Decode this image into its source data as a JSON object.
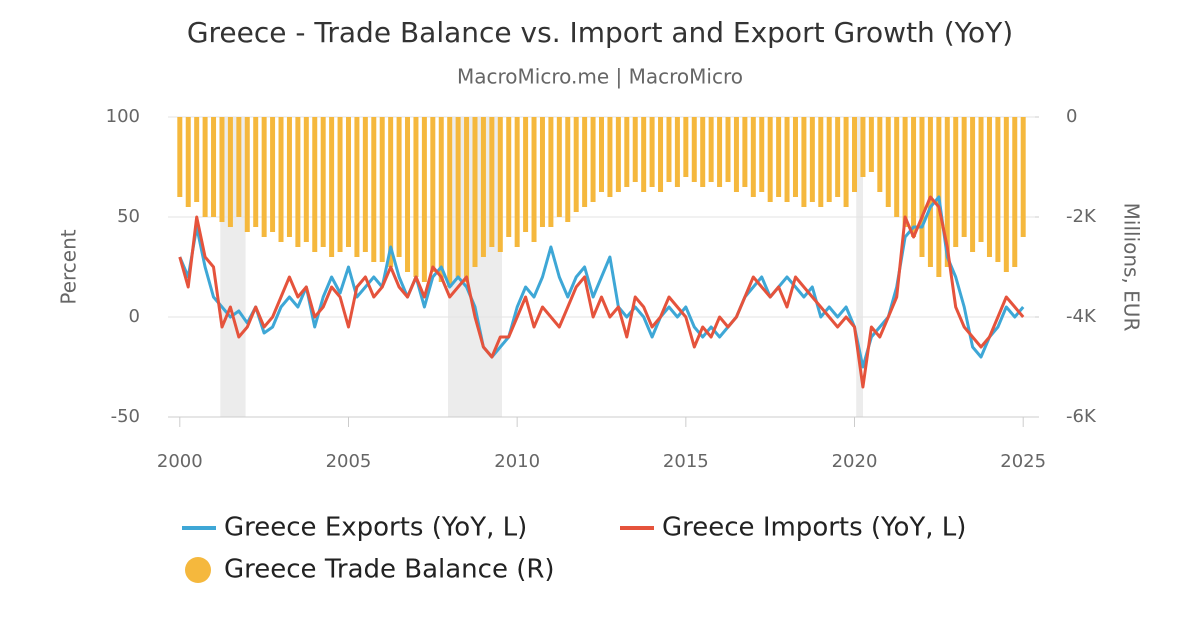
{
  "chart_data": {
    "type": "line_bar_dual",
    "title": "Greece - Trade Balance vs. Import and Export Growth (YoY)",
    "subtitle": "MacroMicro.me | MacroMicro",
    "y_label": "Percent",
    "y2_label": "Millions, EUR",
    "x": [
      2000,
      2000.25,
      2000.5,
      2000.75,
      2001,
      2001.25,
      2001.5,
      2001.75,
      2002,
      2002.25,
      2002.5,
      2002.75,
      2003,
      2003.25,
      2003.5,
      2003.75,
      2004,
      2004.25,
      2004.5,
      2004.75,
      2005,
      2005.25,
      2005.5,
      2005.75,
      2006,
      2006.25,
      2006.5,
      2006.75,
      2007,
      2007.25,
      2007.5,
      2007.75,
      2008,
      2008.25,
      2008.5,
      2008.75,
      2009,
      2009.25,
      2009.5,
      2009.75,
      2010,
      2010.25,
      2010.5,
      2010.75,
      2011,
      2011.25,
      2011.5,
      2011.75,
      2012,
      2012.25,
      2012.5,
      2012.75,
      2013,
      2013.25,
      2013.5,
      2013.75,
      2014,
      2014.25,
      2014.5,
      2014.75,
      2015,
      2015.25,
      2015.5,
      2015.75,
      2016,
      2016.25,
      2016.5,
      2016.75,
      2017,
      2017.25,
      2017.5,
      2017.75,
      2018,
      2018.25,
      2018.5,
      2018.75,
      2019,
      2019.25,
      2019.5,
      2019.75,
      2020,
      2020.25,
      2020.5,
      2020.75,
      2021,
      2021.25,
      2021.5,
      2021.75,
      2022,
      2022.25,
      2022.5,
      2022.75,
      2023,
      2023.25,
      2023.5,
      2023.75,
      2024,
      2024.25,
      2024.5,
      2024.75,
      2025
    ],
    "series": [
      {
        "name": "Greece Trade Balance (R)",
        "color": "#f5b83d",
        "kind": "bar",
        "axis": "y2",
        "values": [
          -1600,
          -1800,
          -1700,
          -2000,
          -2000,
          -2100,
          -2200,
          -2000,
          -2300,
          -2200,
          -2400,
          -2300,
          -2500,
          -2400,
          -2600,
          -2500,
          -2700,
          -2600,
          -2800,
          -2700,
          -2600,
          -2800,
          -2700,
          -2900,
          -2900,
          -3000,
          -2800,
          -3100,
          -3200,
          -3300,
          -3100,
          -3300,
          -3400,
          -3200,
          -3300,
          -3000,
          -2800,
          -2600,
          -2700,
          -2400,
          -2600,
          -2300,
          -2500,
          -2200,
          -2200,
          -2000,
          -2100,
          -1900,
          -1800,
          -1700,
          -1500,
          -1600,
          -1500,
          -1400,
          -1300,
          -1500,
          -1400,
          -1500,
          -1300,
          -1400,
          -1200,
          -1300,
          -1400,
          -1300,
          -1400,
          -1300,
          -1500,
          -1400,
          -1600,
          -1500,
          -1700,
          -1600,
          -1700,
          -1600,
          -1800,
          -1700,
          -1800,
          -1700,
          -1600,
          -1800,
          -1500,
          -1200,
          -1100,
          -1500,
          -1800,
          -2000,
          -2200,
          -2400,
          -2800,
          -3000,
          -3200,
          -3000,
          -2600,
          -2400,
          -2700,
          -2500,
          -2800,
          -2900,
          -3100,
          -3000,
          -2400
        ]
      },
      {
        "name": "Greece Exports (YoY, L)",
        "color": "#3ea7d6",
        "kind": "line",
        "values": [
          30,
          20,
          45,
          25,
          10,
          5,
          0,
          3,
          -3,
          5,
          -8,
          -5,
          5,
          10,
          5,
          15,
          -5,
          10,
          20,
          12,
          25,
          10,
          15,
          20,
          15,
          35,
          20,
          10,
          20,
          5,
          20,
          25,
          15,
          20,
          15,
          5,
          -15,
          -20,
          -15,
          -10,
          5,
          15,
          10,
          20,
          35,
          20,
          10,
          20,
          25,
          10,
          20,
          30,
          5,
          0,
          5,
          0,
          -10,
          0,
          5,
          0,
          5,
          -5,
          -10,
          -5,
          -10,
          -5,
          0,
          10,
          15,
          20,
          10,
          15,
          20,
          15,
          10,
          15,
          0,
          5,
          0,
          5,
          -5,
          -25,
          -10,
          -5,
          0,
          15,
          40,
          45,
          45,
          55,
          60,
          30,
          20,
          5,
          -15,
          -20,
          -10,
          -5,
          5,
          0,
          5
        ]
      },
      {
        "name": "Greece Imports (YoY, L)",
        "color": "#e5533c",
        "kind": "line",
        "values": [
          30,
          15,
          50,
          30,
          25,
          -5,
          5,
          -10,
          -5,
          5,
          -5,
          0,
          10,
          20,
          10,
          15,
          0,
          5,
          15,
          10,
          -5,
          15,
          20,
          10,
          15,
          25,
          15,
          10,
          20,
          10,
          25,
          20,
          10,
          15,
          20,
          0,
          -15,
          -20,
          -10,
          -10,
          0,
          10,
          -5,
          5,
          0,
          -5,
          5,
          15,
          20,
          0,
          10,
          0,
          5,
          -10,
          10,
          5,
          -5,
          0,
          10,
          5,
          0,
          -15,
          -5,
          -10,
          0,
          -5,
          0,
          10,
          20,
          15,
          10,
          15,
          5,
          20,
          15,
          10,
          5,
          0,
          -5,
          0,
          -5,
          -35,
          -5,
          -10,
          0,
          10,
          50,
          40,
          50,
          60,
          55,
          35,
          5,
          -5,
          -10,
          -15,
          -10,
          0,
          10,
          5,
          0
        ]
      }
    ],
    "shaded_periods": [
      [
        2001.2,
        2001.95
      ],
      [
        2007.95,
        2009.55
      ],
      [
        2020.05,
        2020.25
      ]
    ],
    "xlim": [
      1999.65,
      2025.35
    ],
    "xticks": [
      2000,
      2005,
      2010,
      2015,
      2020,
      2025
    ],
    "ylim": [
      -50,
      100
    ],
    "yticks": [
      -50,
      0,
      50,
      100
    ],
    "y2lim": [
      -6000,
      0
    ],
    "y2ticks": [
      {
        "value": -6000,
        "label": "-6K"
      },
      {
        "value": -4000,
        "label": "-4K"
      },
      {
        "value": -2000,
        "label": "-2K"
      },
      0
    ],
    "grid": true
  }
}
